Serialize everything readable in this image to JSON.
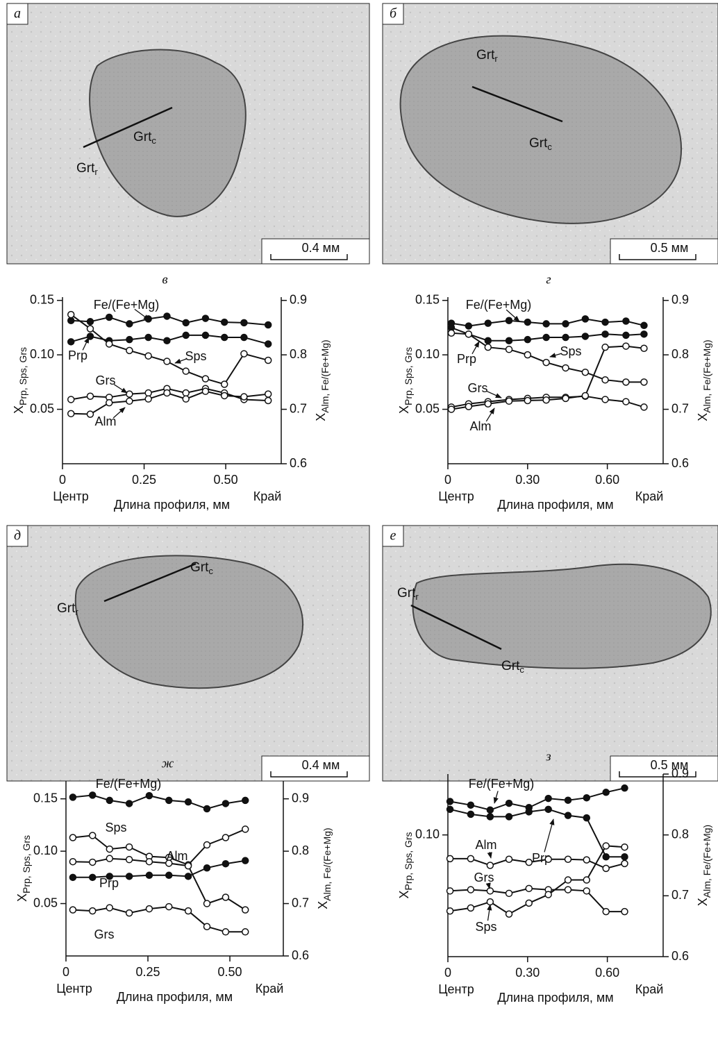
{
  "photos": [
    {
      "panel": "а",
      "labels": [
        {
          "text": "Grt",
          "sub": "c"
        },
        {
          "text": "Grt",
          "sub": "r"
        }
      ],
      "scale": "0.4 мм"
    },
    {
      "panel": "б",
      "labels": [
        {
          "text": "Grt",
          "sub": "r"
        },
        {
          "text": "Grt",
          "sub": "c"
        }
      ],
      "scale": "0.5 мм"
    },
    {
      "panel": "д",
      "labels": [
        {
          "text": "Grt",
          "sub": "c"
        },
        {
          "text": "Grt",
          "sub": "r"
        }
      ],
      "scale": "0.4 мм"
    },
    {
      "panel": "е",
      "labels": [
        {
          "text": "Grt",
          "sub": "r"
        },
        {
          "text": "Grt",
          "sub": "c"
        }
      ],
      "scale": "0.5 мм"
    }
  ],
  "chart_data": [
    {
      "type": "line",
      "title": "в",
      "ylabel": {
        "text": "X",
        "sub": "Prp, Sps, Grs"
      },
      "y2label": {
        "text": "X",
        "sub": "Alm, Fe/(Fe+Mg)"
      },
      "xlabel": "Длина профиля, мм",
      "xlabel_start": "Центр",
      "xlabel_end": "Край",
      "xlim": [
        0,
        0.67
      ],
      "xticks": [
        0,
        {
          "value": 0.25,
          "label": "0.25"
        },
        {
          "value": 0.5,
          "label": "0.50"
        }
      ],
      "ylim": [
        0,
        0.153
      ],
      "yticks": [
        {
          "value": 0.05,
          "label": "0.05"
        },
        {
          "value": 0.1,
          "label": "0.10"
        },
        0.15
      ],
      "y2lim": [
        0.6,
        0.906
      ],
      "y2ticks": [
        0.6,
        0.7,
        0.8,
        0.9
      ],
      "x": [
        0.026,
        0.085,
        0.143,
        0.205,
        0.263,
        0.32,
        0.378,
        0.438,
        0.496,
        0.556,
        0.63
      ],
      "series": [
        {
          "name": "Fe/(Fe+Mg)",
          "axis": "y2",
          "marker": "filled",
          "color": "#111111",
          "values": [
            0.863,
            0.861,
            0.869,
            0.857,
            0.866,
            0.871,
            0.859,
            0.867,
            0.86,
            0.859,
            0.855
          ]
        },
        {
          "name": "Prp",
          "marker": "filled",
          "color": "#111111",
          "values": [
            0.112,
            0.117,
            0.113,
            0.114,
            0.116,
            0.113,
            0.118,
            0.118,
            0.116,
            0.116,
            0.11
          ]
        },
        {
          "name": "Sps",
          "marker": "open",
          "color": "#111111",
          "values": [
            0.137,
            0.124,
            0.11,
            0.104,
            0.099,
            0.094,
            0.085,
            0.078,
            0.073,
            0.101,
            0.095
          ]
        },
        {
          "name": "Grs",
          "marker": "open",
          "color": "#111111",
          "values": [
            0.059,
            0.062,
            0.061,
            0.064,
            0.065,
            0.069,
            0.065,
            0.069,
            0.065,
            0.059,
            0.058
          ]
        },
        {
          "name": "Alm",
          "axis": "y2",
          "marker": "open",
          "color": "#111111",
          "values": [
            0.692,
            0.691,
            0.712,
            0.715,
            0.719,
            0.73,
            0.719,
            0.733,
            0.725,
            0.723,
            0.728
          ]
        }
      ]
    },
    {
      "type": "line",
      "title": "г",
      "ylabel": {
        "text": "X",
        "sub": "Prp, Sps, Grs"
      },
      "y2label": {
        "text": "X",
        "sub": "Alm, Fe/(Fe+Mg)"
      },
      "xlabel": "Длина профиля, мм",
      "xlabel_start": "Центр",
      "xlabel_end": "Край",
      "xlim": [
        0,
        0.81
      ],
      "xticks": [
        0,
        {
          "value": 0.3,
          "label": "0.30"
        },
        {
          "value": 0.6,
          "label": "0.60"
        }
      ],
      "ylim": [
        0,
        0.153
      ],
      "yticks": [
        {
          "value": 0.05,
          "label": "0.05"
        },
        {
          "value": 0.1,
          "label": "0.10"
        },
        0.15
      ],
      "y2lim": [
        0.6,
        0.906
      ],
      "y2ticks": [
        0.6,
        0.7,
        0.8,
        0.9
      ],
      "x": [
        0.013,
        0.078,
        0.151,
        0.23,
        0.3,
        0.37,
        0.443,
        0.517,
        0.592,
        0.67,
        0.738
      ],
      "series": [
        {
          "name": "Fe/(Fe+Mg)",
          "axis": "y2",
          "marker": "filled",
          "color": "#111111",
          "values": [
            0.858,
            0.853,
            0.858,
            0.863,
            0.86,
            0.857,
            0.857,
            0.866,
            0.86,
            0.862,
            0.854
          ]
        },
        {
          "name": "Prp",
          "marker": "filled",
          "color": "#111111",
          "values": [
            0.125,
            0.119,
            0.113,
            0.113,
            0.114,
            0.116,
            0.116,
            0.117,
            0.119,
            0.118,
            0.119
          ]
        },
        {
          "name": "Sps",
          "marker": "open",
          "color": "#111111",
          "values": [
            0.12,
            0.119,
            0.107,
            0.105,
            0.1,
            0.093,
            0.088,
            0.084,
            0.077,
            0.075,
            0.075
          ]
        },
        {
          "name": "Grs",
          "marker": "open",
          "color": "#111111",
          "values": [
            0.052,
            0.055,
            0.057,
            0.059,
            0.06,
            0.061,
            0.061,
            0.062,
            0.059,
            0.057,
            0.052
          ]
        },
        {
          "name": "Alm",
          "axis": "y2",
          "marker": "open",
          "color": "#111111",
          "values": [
            0.7,
            0.705,
            0.71,
            0.715,
            0.716,
            0.717,
            0.72,
            0.725,
            0.814,
            0.816,
            0.812
          ]
        }
      ]
    },
    {
      "type": "line",
      "title": "ж",
      "ylabel": {
        "text": "X",
        "sub": "Prp, Sps, Grs"
      },
      "y2label": {
        "text": "X",
        "sub": "Alm, Fe/(Fe+Mg)"
      },
      "xlabel": "Длина профиля, мм",
      "xlabel_start": "Центр",
      "xlabel_end": "Край",
      "xlim": [
        0,
        0.663
      ],
      "xticks": [
        0,
        {
          "value": 0.25,
          "label": "0.25"
        },
        {
          "value": 0.5,
          "label": "0.50"
        }
      ],
      "ylim": [
        0,
        0.167
      ],
      "yticks": [
        {
          "value": 0.05,
          "label": "0.05"
        },
        {
          "value": 0.1,
          "label": "0.10"
        },
        0.15
      ],
      "y2lim": [
        0.6,
        0.934
      ],
      "y2ticks": [
        0.6,
        0.7,
        0.8,
        0.9
      ],
      "x": [
        0.021,
        0.081,
        0.133,
        0.193,
        0.254,
        0.314,
        0.373,
        0.43,
        0.487,
        0.547
      ],
      "series": [
        {
          "name": "Fe/(Fe+Mg)",
          "axis": "y2",
          "marker": "filled",
          "color": "#111111",
          "values": [
            0.903,
            0.907,
            0.897,
            0.891,
            0.906,
            0.897,
            0.894,
            0.881,
            0.891,
            0.897
          ]
        },
        {
          "name": "Sps",
          "marker": "open",
          "color": "#111111",
          "values": [
            0.113,
            0.115,
            0.102,
            0.104,
            0.095,
            0.094,
            0.087,
            0.106,
            0.113,
            0.121
          ]
        },
        {
          "name": "Alm",
          "axis": "y2",
          "marker": "open",
          "color": "#111111",
          "values": [
            0.78,
            0.779,
            0.786,
            0.784,
            0.78,
            0.777,
            0.772,
            0.7,
            0.712,
            0.688
          ]
        },
        {
          "name": "Prp",
          "marker": "filled",
          "color": "#111111",
          "values": [
            0.075,
            0.075,
            0.076,
            0.076,
            0.077,
            0.077,
            0.076,
            0.084,
            0.088,
            0.091
          ]
        },
        {
          "name": "Grs",
          "marker": "open",
          "color": "#111111",
          "values": [
            0.044,
            0.043,
            0.046,
            0.041,
            0.045,
            0.047,
            0.043,
            0.028,
            0.023,
            0.023
          ]
        }
      ]
    },
    {
      "type": "line",
      "title": "з",
      "ylabel": {
        "text": "X",
        "sub": "Prp, Sps, Grs"
      },
      "y2label": {
        "text": "X",
        "sub": "Alm, Fe/(Fe+Mg)"
      },
      "xlabel": "Длина профиля, мм",
      "xlabel_start": "Центр",
      "xlabel_end": "Край",
      "xlim": [
        0,
        0.81
      ],
      "xticks": [
        0,
        {
          "value": 0.3,
          "label": "0.30"
        },
        {
          "value": 0.6,
          "label": "0.60"
        }
      ],
      "ylim": [
        0,
        0.15
      ],
      "yticks": [
        {
          "value": 0.1,
          "label": "0.10"
        }
      ],
      "y2lim": [
        0.6,
        0.9
      ],
      "y2ticks": [
        0.6,
        0.7,
        0.8,
        0.9
      ],
      "x": [
        0.008,
        0.086,
        0.159,
        0.23,
        0.305,
        0.378,
        0.452,
        0.522,
        0.595,
        0.665
      ],
      "series": [
        {
          "name": "Fe/(Fe+Mg)",
          "axis": "y2",
          "marker": "filled",
          "color": "#111111",
          "values": [
            0.855,
            0.849,
            0.841,
            0.852,
            0.845,
            0.86,
            0.857,
            0.861,
            0.87,
            0.877
          ]
        },
        {
          "name": "Prp",
          "marker": "filled",
          "color": "#111111",
          "values": [
            0.121,
            0.117,
            0.115,
            0.115,
            0.119,
            0.121,
            0.116,
            0.114,
            0.082,
            0.082
          ]
        },
        {
          "name": "Alm",
          "axis": "y2",
          "marker": "open",
          "color": "#111111",
          "values": [
            0.761,
            0.761,
            0.75,
            0.76,
            0.755,
            0.76,
            0.76,
            0.759,
            0.745,
            0.753
          ]
        },
        {
          "name": "Grs",
          "marker": "open",
          "color": "#111111",
          "values": [
            0.054,
            0.055,
            0.054,
            0.052,
            0.056,
            0.055,
            0.055,
            0.054,
            0.037,
            0.037
          ]
        },
        {
          "name": "Sps",
          "marker": "open",
          "color": "#111111",
          "values": [
            0.0375,
            0.04,
            0.045,
            0.035,
            0.044,
            0.051,
            0.063,
            0.063,
            0.091,
            0.09
          ]
        }
      ]
    }
  ]
}
